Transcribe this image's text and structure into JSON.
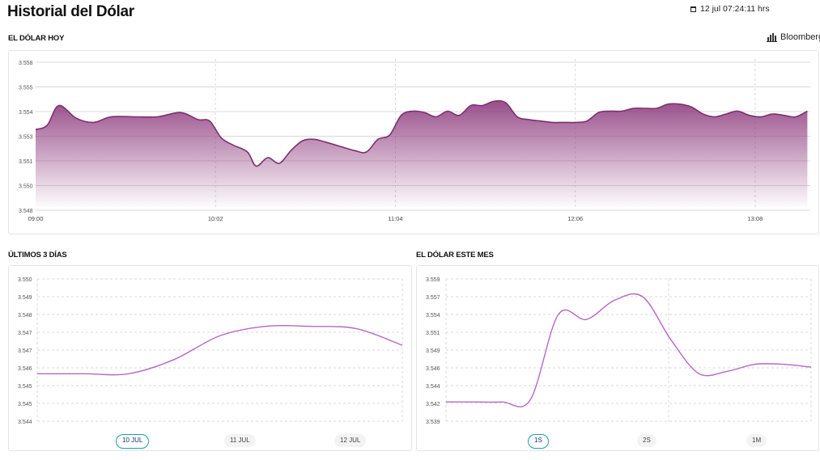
{
  "header": {
    "title": "Historial del Dólar",
    "datetime": "12 jul 07:24:11 hrs"
  },
  "brand": {
    "label": "Bloomberg",
    "icon": "bloomberg-logo-icon"
  },
  "colors": {
    "accent": "#8e3b7e",
    "line_light": "#b567c6",
    "grid": "#d9d9d9",
    "pill_active": "#1aa0b0"
  },
  "sections": {
    "today": "EL DÓLAR HOY",
    "three_days": "ÚLTIMOS 3 DÍAS",
    "month": "EL DÓLAR ESTE MES"
  },
  "tabs_three_days": [
    "10 JUL",
    "11 JUL",
    "12 JUL"
  ],
  "tabs_month": [
    "1S",
    "2S",
    "1M"
  ],
  "chart_data": [
    {
      "id": "today",
      "type": "area",
      "title": "EL DÓLAR HOY",
      "x_ticks": [
        "09:00",
        "10:02",
        "11:04",
        "12:06",
        "13:08"
      ],
      "x_tick_minutes": [
        0,
        62,
        124,
        186,
        248
      ],
      "xlim_minutes": [
        0,
        267
      ],
      "y_ticks": [
        "3.558",
        "3.555",
        "3.554",
        "3.553",
        "3.551",
        "3.550",
        "3.548"
      ],
      "ylim": [
        3.548,
        3.5585
      ],
      "grid": true,
      "x_minutes": [
        0,
        4,
        8,
        14,
        20,
        26,
        34,
        42,
        50,
        56,
        60,
        64,
        68,
        73,
        76,
        80,
        84,
        88,
        92,
        96,
        100,
        105,
        110,
        114,
        118,
        122,
        126,
        130,
        134,
        138,
        142,
        146,
        150,
        154,
        158,
        162,
        166,
        170,
        174,
        178,
        182,
        186,
        190,
        194,
        198,
        202,
        206,
        210,
        214,
        218,
        222,
        226,
        230,
        234,
        238,
        242,
        246,
        250,
        254,
        258,
        262,
        266
      ],
      "values": [
        3.5535,
        3.5538,
        3.5552,
        3.5543,
        3.554,
        3.5544,
        3.5544,
        3.5544,
        3.5547,
        3.5542,
        3.5541,
        3.5529,
        3.5524,
        3.5519,
        3.5509,
        3.5515,
        3.5511,
        3.552,
        3.5527,
        3.5528,
        3.5526,
        3.5523,
        3.552,
        3.5519,
        3.5528,
        3.5531,
        3.5545,
        3.5548,
        3.5547,
        3.5544,
        3.5548,
        3.5545,
        3.5552,
        3.5552,
        3.5555,
        3.5554,
        3.5544,
        3.5542,
        3.5541,
        3.554,
        3.554,
        3.554,
        3.5541,
        3.5547,
        3.5548,
        3.5548,
        3.555,
        3.555,
        3.555,
        3.5553,
        3.5553,
        3.5551,
        3.5546,
        3.5544,
        3.5546,
        3.5548,
        3.5545,
        3.5544,
        3.5546,
        3.5545,
        3.5544,
        3.5548
      ]
    },
    {
      "id": "three_days",
      "type": "line",
      "title": "ÚLTIMOS 3 DÍAS",
      "y_ticks": [
        "3.550",
        "3.549",
        "3.548",
        "3.547",
        "3.547",
        "3.546",
        "3.545",
        "3.545",
        "3.544"
      ],
      "ylim": [
        3.544,
        3.55
      ],
      "grid": true,
      "values": [
        3.546,
        3.546,
        3.546,
        3.5466,
        3.5476,
        3.548,
        3.548,
        3.5479,
        3.5472
      ]
    },
    {
      "id": "month",
      "type": "line",
      "title": "EL DÓLAR ESTE MES",
      "y_ticks": [
        "3.559",
        "3.557",
        "3.554",
        "3.551",
        "3.549",
        "3.546",
        "3.544",
        "3.542",
        "3.539"
      ],
      "ylim": [
        3.539,
        3.559
      ],
      "grid": true,
      "values": [
        3.5417,
        3.5417,
        3.5417,
        3.542,
        3.554,
        3.5533,
        3.556,
        3.5565,
        3.5505,
        3.5457,
        3.546,
        3.547,
        3.547,
        3.5466
      ]
    }
  ]
}
